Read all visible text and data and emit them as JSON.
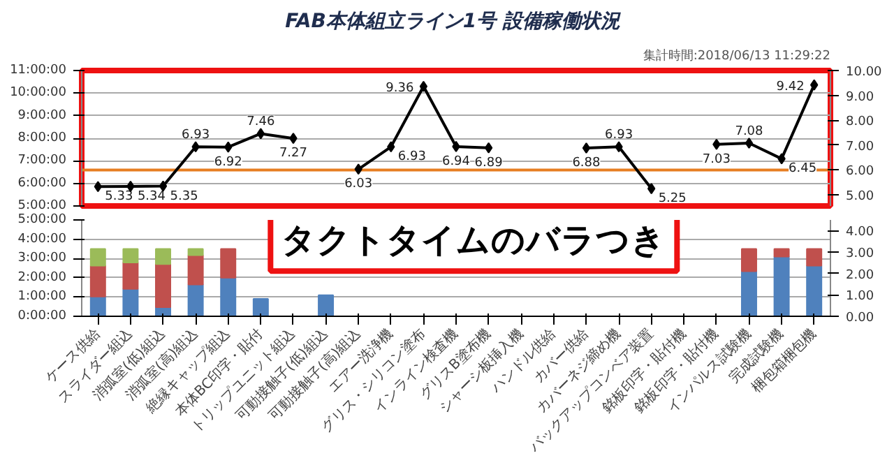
{
  "chart_data": [
    {
      "type": "line",
      "title": "FAB本体組立ライン1号  設備稼働状況",
      "subtitle": "集計時間:2018/06/13 11:29:22",
      "categories": [
        null,
        null,
        null,
        null,
        null,
        null,
        null,
        null,
        null,
        null,
        null,
        null,
        null,
        null,
        null,
        null,
        null,
        null,
        null,
        null,
        null,
        null,
        null
      ],
      "series": [
        {
          "color": "#000000",
          "axis": "y2",
          "values": [
            5.33,
            5.34,
            5.35,
            6.93,
            6.92,
            7.46,
            7.27,
            null,
            6.03,
            6.93,
            9.36,
            6.94,
            6.89,
            null,
            null,
            6.88,
            6.93,
            5.25,
            null,
            7.03,
            7.08,
            6.45,
            9.42
          ],
          "value_labels": [
            "5.33",
            "5.34",
            "5.35",
            "6.93",
            "6.92",
            "7.46",
            "7.27",
            null,
            "6.03",
            "6.93",
            "9.36",
            "6.94",
            "6.89",
            null,
            null,
            "6.88",
            "6.93",
            "5.25",
            null,
            "7.03",
            "7.08",
            "6.45",
            "9.42"
          ]
        }
      ],
      "marker": "diamond",
      "grid": "y",
      "ylim": [
        5,
        11
      ],
      "yticks": [
        {
          "value": 5,
          "label": "5:00:00"
        },
        {
          "value": 6,
          "label": "6:00:00"
        },
        {
          "value": 7,
          "label": "7:00:00"
        },
        {
          "value": 8,
          "label": "8:00:00"
        },
        {
          "value": 9,
          "label": "9:00:00"
        },
        {
          "value": 10,
          "label": "10:00:00"
        },
        {
          "value": 11,
          "label": "11:00:00"
        }
      ],
      "y2lim": [
        4.55,
        10
      ],
      "y2ticks": [
        {
          "value": 5,
          "label": "5.00"
        },
        {
          "value": 6,
          "label": "6.00"
        },
        {
          "value": 7,
          "label": "7.00"
        },
        {
          "value": 8,
          "label": "8.00"
        },
        {
          "value": 9,
          "label": "9.00"
        },
        {
          "value": 10,
          "label": "10.00"
        }
      ],
      "ref_lines": [
        {
          "axis": "y2",
          "value": 6.0,
          "color": "#e67e22"
        }
      ]
    },
    {
      "type": "bar",
      "stacked": true,
      "categories": [
        "ケース供給",
        "スライダー組込",
        "消弧室(低)組込",
        "消弧室(高)組込",
        "絶縁キャップ組込",
        "本体BC印字・貼付",
        "トリップユニット組込",
        "可動接触子(低)組込",
        "可動接触子(高)組込",
        "エアー洗浄機",
        "グリス・シリコン塗布",
        "インライン検査機",
        "グリスB塗布機",
        "シャーシ板挿入機",
        "ハンドル供給",
        "カバー供給",
        "カバーネジ締め機",
        "バックアップコンベア装置",
        "銘板印字・貼付機",
        "銘板印字・貼付機",
        "インパルス試験機",
        "完成試験機",
        "梱包箱梱包機"
      ],
      "series": [
        {
          "color": "#4f81bd",
          "values": [
            1.02,
            1.42,
            0.47,
            1.65,
            2.0,
            0.91,
            null,
            1.1,
            null,
            null,
            null,
            null,
            null,
            null,
            null,
            null,
            null,
            null,
            null,
            null,
            2.34,
            3.1,
            2.63
          ]
        },
        {
          "color": "#c0504d",
          "values": [
            1.61,
            1.37,
            2.24,
            1.52,
            1.5,
            null,
            null,
            null,
            null,
            null,
            null,
            null,
            null,
            null,
            null,
            null,
            null,
            null,
            null,
            null,
            1.16,
            0.4,
            0.87
          ]
        },
        {
          "color": "#9bbb59",
          "values": [
            0.87,
            0.71,
            0.79,
            0.33,
            null,
            null,
            null,
            null,
            null,
            null,
            null,
            null,
            null,
            null,
            null,
            null,
            null,
            null,
            null,
            null,
            null,
            null,
            null
          ]
        }
      ],
      "grid": "y",
      "ylim": [
        0,
        5
      ],
      "yticks": [
        {
          "value": 0,
          "label": "0:00:00"
        },
        {
          "value": 1,
          "label": "1:00:00"
        },
        {
          "value": 2,
          "label": "2:00:00"
        },
        {
          "value": 3,
          "label": "3:00:00"
        },
        {
          "value": 4,
          "label": "4:00:00"
        },
        {
          "value": 5,
          "label": "5:00:00"
        }
      ],
      "y2lim": [
        0,
        4.5
      ],
      "y2ticks": [
        {
          "value": 0,
          "label": "0.00"
        },
        {
          "value": 1,
          "label": "1.00"
        },
        {
          "value": 2,
          "label": "2.00"
        },
        {
          "value": 3,
          "label": "3.00"
        },
        {
          "value": 4,
          "label": "4.00"
        }
      ],
      "annotations": [
        "タクトタイムのバラつき"
      ]
    }
  ]
}
